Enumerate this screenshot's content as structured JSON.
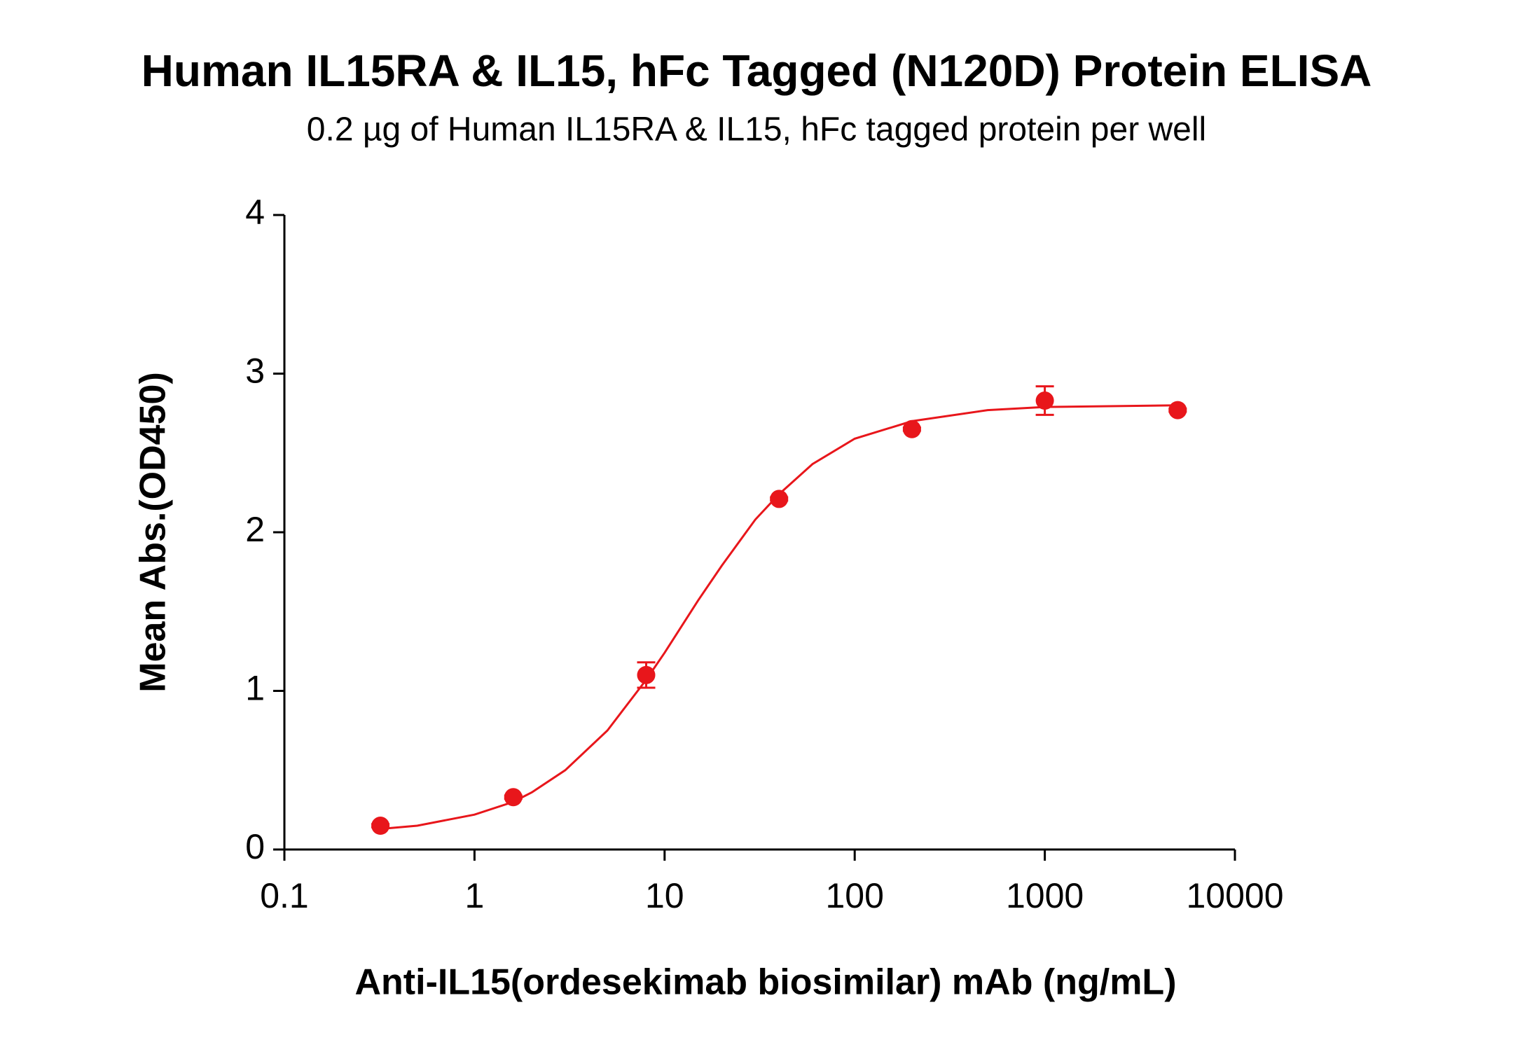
{
  "chart_data": {
    "type": "scatter",
    "title": "Human IL15RA & IL15, hFc Tagged (N120D) Protein ELISA",
    "subtitle": "0.2 µg of Human IL15RA & IL15, hFc tagged protein per well",
    "x_label": "Anti-IL15(ordesekimab biosimilar) mAb (ng/mL)",
    "y_label": "Mean Abs.(OD450)",
    "x_scale": "log",
    "xlim": [
      0.1,
      10000
    ],
    "xticks": [
      0.1,
      1,
      10,
      100,
      1000,
      10000
    ],
    "ylim": [
      0,
      4
    ],
    "yticks": [
      0,
      1,
      2,
      3,
      4
    ],
    "color": "#e8161b",
    "x": [
      0.32,
      1.6,
      8,
      40,
      200,
      1000,
      5000
    ],
    "values": [
      0.15,
      0.33,
      1.1,
      2.21,
      2.65,
      2.83,
      2.77
    ],
    "errors": [
      0.01,
      0.01,
      0.08,
      0.01,
      0.01,
      0.09,
      0.01
    ],
    "fit": {
      "x": [
        0.32,
        0.5,
        1,
        1.6,
        2,
        3,
        5,
        8,
        10,
        15,
        20,
        30,
        40,
        60,
        100,
        200,
        500,
        1000,
        5000
      ],
      "values": [
        0.13,
        0.15,
        0.22,
        0.3,
        0.36,
        0.5,
        0.75,
        1.07,
        1.24,
        1.57,
        1.79,
        2.08,
        2.24,
        2.43,
        2.59,
        2.7,
        2.77,
        2.79,
        2.8
      ]
    }
  }
}
